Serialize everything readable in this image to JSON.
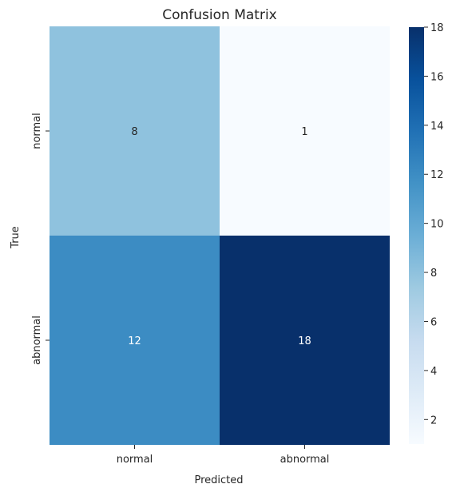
{
  "chart_data": {
    "type": "heatmap",
    "title": "Confusion Matrix",
    "xlabel": "Predicted",
    "ylabel": "True",
    "x_categories": [
      "normal",
      "abnormal"
    ],
    "y_categories": [
      "normal",
      "abnormal"
    ],
    "values": [
      [
        8,
        1
      ],
      [
        12,
        18
      ]
    ],
    "colormap": "Blues",
    "colorbar": {
      "min": 1,
      "max": 18,
      "ticks": [
        2,
        4,
        6,
        8,
        10,
        12,
        14,
        16,
        18
      ]
    },
    "annotations": true
  }
}
